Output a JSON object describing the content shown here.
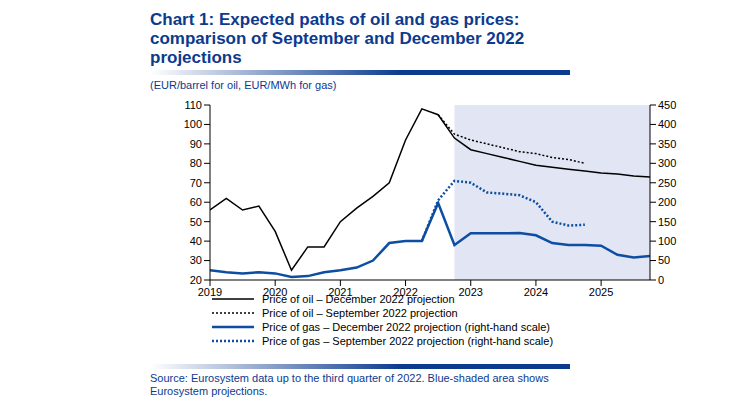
{
  "chart_data": {
    "type": "line",
    "title": "Chart 1: Expected paths of oil and gas prices: comparison of September and December 2022 projections",
    "subtitle": "(EUR/barrel for oil, EUR/MWh for gas)",
    "source": "Source: Eurosystem data up to the third quarter of 2022. Blue-shaded area shows Eurosystem projections.",
    "x": [
      2019,
      2019.25,
      2019.5,
      2019.75,
      2020,
      2020.25,
      2020.5,
      2020.75,
      2021,
      2021.25,
      2021.5,
      2021.75,
      2022,
      2022.25,
      2022.5,
      2022.75,
      2023,
      2023.25,
      2023.5,
      2023.75,
      2024,
      2024.25,
      2024.5,
      2024.75,
      2025,
      2025.25,
      2025.5,
      2025.75
    ],
    "xlim": [
      2019,
      2025.75
    ],
    "xticks": [
      2019,
      2020,
      2021,
      2022,
      2023,
      2024,
      2025
    ],
    "ylim": [
      20,
      110
    ],
    "yticks": [
      20,
      30,
      40,
      50,
      60,
      70,
      80,
      90,
      100,
      110
    ],
    "y2lim": [
      0,
      450
    ],
    "y2ticks": [
      0,
      50,
      100,
      150,
      200,
      250,
      300,
      350,
      400,
      450
    ],
    "shaded_range": [
      2022.75,
      2025.75
    ],
    "grid": false,
    "legend": "bottom",
    "series": [
      {
        "name": "Price of oil – December 2022 projection",
        "color": "#000000",
        "line_style": "solid",
        "values": [
          56,
          62,
          56,
          58,
          45,
          25,
          37,
          37,
          50,
          57,
          63,
          70,
          92,
          108,
          105,
          93,
          87,
          85,
          83,
          81,
          79,
          78,
          77,
          76,
          75,
          74.5,
          73.5,
          73
        ]
      },
      {
        "name": "Price of oil – September 2022 projection",
        "color": "#000000",
        "line_style": "dotted",
        "values": [
          null,
          null,
          null,
          null,
          null,
          null,
          null,
          null,
          null,
          null,
          null,
          null,
          null,
          null,
          105,
          95,
          92,
          90,
          88,
          86,
          85,
          83,
          82,
          80,
          null,
          null,
          null,
          null
        ]
      },
      {
        "name": "Price of gas – December 2022 projection (right-hand scale)",
        "color": "#0b4ea2",
        "line_style": "solid",
        "axis": "y2",
        "values": [
          25,
          20,
          17,
          20,
          17,
          8,
          10,
          20,
          25,
          32,
          50,
          95,
          100,
          100,
          198,
          90,
          120,
          120,
          120,
          121,
          115,
          95,
          90,
          90,
          88,
          65,
          58,
          62
        ]
      },
      {
        "name": "Price of gas – September 2022 projection (right-hand scale)",
        "color": "#0b4ea2",
        "line_style": "dotted",
        "axis": "y2",
        "values": [
          null,
          null,
          null,
          null,
          null,
          null,
          null,
          null,
          null,
          null,
          null,
          null,
          null,
          100,
          205,
          255,
          250,
          225,
          222,
          218,
          200,
          150,
          140,
          142,
          null,
          null,
          null,
          null
        ]
      }
    ]
  }
}
